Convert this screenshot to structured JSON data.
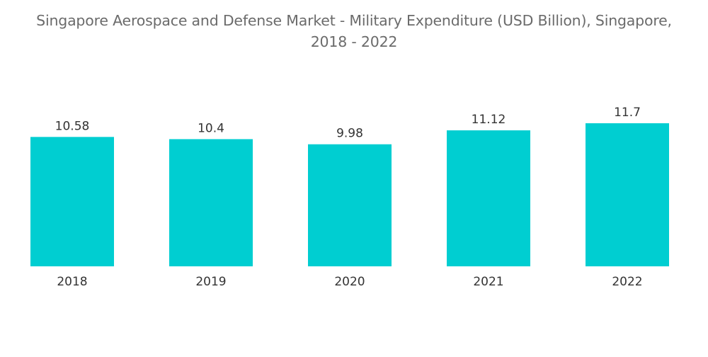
{
  "chart_data": {
    "type": "bar",
    "title_line1": "Singapore Aerospace and Defense Market - Military Expenditure (USD Billion), Singapore,",
    "title_line2": "2018 - 2022",
    "categories": [
      "2018",
      "2019",
      "2020",
      "2021",
      "2022"
    ],
    "values": [
      10.58,
      10.4,
      9.98,
      11.12,
      11.7
    ],
    "value_labels": [
      "10.58",
      "10.4",
      "9.98",
      "11.12",
      "11.7"
    ],
    "xlabel": "",
    "ylabel": "",
    "ylim": [
      0,
      11.7
    ],
    "grid": false,
    "legend": "none",
    "bar_color": "#00CED1"
  }
}
